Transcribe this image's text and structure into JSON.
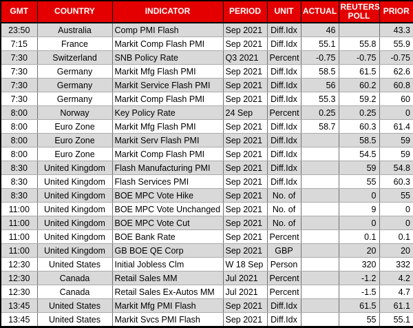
{
  "colors": {
    "header_background": "#E40000",
    "header_text": "#FFFFFF",
    "row_alternate": "#D9D9D9",
    "row_plain": "#FFFFFF",
    "outer_border": "#000000",
    "cell_text": "#000000"
  },
  "table": {
    "columns": [
      {
        "label": "GMT"
      },
      {
        "label": "COUNTRY"
      },
      {
        "label": "INDICATOR"
      },
      {
        "label": "PERIOD"
      },
      {
        "label": "UNIT"
      },
      {
        "label": "ACTUAL"
      },
      {
        "label": "REUTERS POLL"
      },
      {
        "label": "PRIOR"
      }
    ],
    "rows": [
      [
        "23:50",
        "Australia",
        "Comp PMI Flash",
        "Sep 2021",
        "Diff.Idx",
        "46",
        "",
        "43.3"
      ],
      [
        "7:15",
        "France",
        "Markit Comp Flash PMI",
        "Sep 2021",
        "Diff.Idx",
        "55.1",
        "55.8",
        "55.9"
      ],
      [
        "7:30",
        "Switzerland",
        "SNB Policy Rate",
        "Q3 2021",
        "Percent",
        "-0.75",
        "-0.75",
        "-0.75"
      ],
      [
        "7:30",
        "Germany",
        "Markit Mfg Flash PMI",
        "Sep 2021",
        "Diff.Idx",
        "58.5",
        "61.5",
        "62.6"
      ],
      [
        "7:30",
        "Germany",
        "Markit Service Flash PMI",
        "Sep 2021",
        "Diff.Idx",
        "56",
        "60.2",
        "60.8"
      ],
      [
        "7:30",
        "Germany",
        "Markit Comp Flash PMI",
        "Sep 2021",
        "Diff.Idx",
        "55.3",
        "59.2",
        "60"
      ],
      [
        "8:00",
        "Norway",
        "Key Policy Rate",
        "24 Sep",
        "Percent",
        "0.25",
        "0.25",
        "0"
      ],
      [
        "8:00",
        "Euro Zone",
        "Markit Mfg Flash PMI",
        "Sep 2021",
        "Diff.Idx",
        "58.7",
        "60.3",
        "61.4"
      ],
      [
        "8:00",
        "Euro Zone",
        "Markit Serv Flash PMI",
        "Sep 2021",
        "Diff.Idx",
        "",
        "58.5",
        "59"
      ],
      [
        "8:00",
        "Euro Zone",
        "Markit Comp Flash PMI",
        "Sep 2021",
        "Diff.Idx",
        "",
        "54.5",
        "59"
      ],
      [
        "8:30",
        "United Kingdom",
        "Flash Manufacturing PMI",
        "Sep 2021",
        "Diff.Idx",
        "",
        "59",
        "54.8"
      ],
      [
        "8:30",
        "United Kingdom",
        "Flash Services PMI",
        "Sep 2021",
        "Diff.Idx",
        "",
        "55",
        "60.3"
      ],
      [
        "8:30",
        "United Kingdom",
        "BOE MPC Vote Hike",
        "Sep 2021",
        "No. of",
        "",
        "0",
        "55"
      ],
      [
        "11:00",
        "United Kingdom",
        "BOE MPC Vote Unchanged",
        "Sep 2021",
        "No. of",
        "",
        "9",
        "0"
      ],
      [
        "11:00",
        "United Kingdom",
        "BOE MPC Vote Cut",
        "Sep 2021",
        "No. of",
        "",
        "0",
        "0"
      ],
      [
        "11:00",
        "United Kingdom",
        "BOE Bank Rate",
        "Sep 2021",
        "Percent",
        "",
        "0.1",
        "0.1"
      ],
      [
        "11:00",
        "United Kingdom",
        "GB BOE QE Corp",
        "Sep 2021",
        "GBP",
        "",
        "20",
        "20"
      ],
      [
        "12:30",
        "United States",
        "Initial Jobless Clm",
        "W 18 Sep",
        "Person",
        "",
        "320",
        "332"
      ],
      [
        "12:30",
        "Canada",
        "Retail Sales MM",
        "Jul 2021",
        "Percent",
        "",
        "-1.2",
        "4.2"
      ],
      [
        "12:30",
        "Canada",
        "Retail Sales Ex-Autos MM",
        "Jul 2021",
        "Percent",
        "",
        "-1.5",
        "4.7"
      ],
      [
        "13:45",
        "United States",
        "Markit Mfg PMI Flash",
        "Sep 2021",
        "Diff.Idx",
        "",
        "61.5",
        "61.1"
      ],
      [
        "13:45",
        "United States",
        "Markit Svcs PMI Flash",
        "Sep 2021",
        "Diff.Idx",
        "",
        "55",
        "55.1"
      ]
    ]
  }
}
